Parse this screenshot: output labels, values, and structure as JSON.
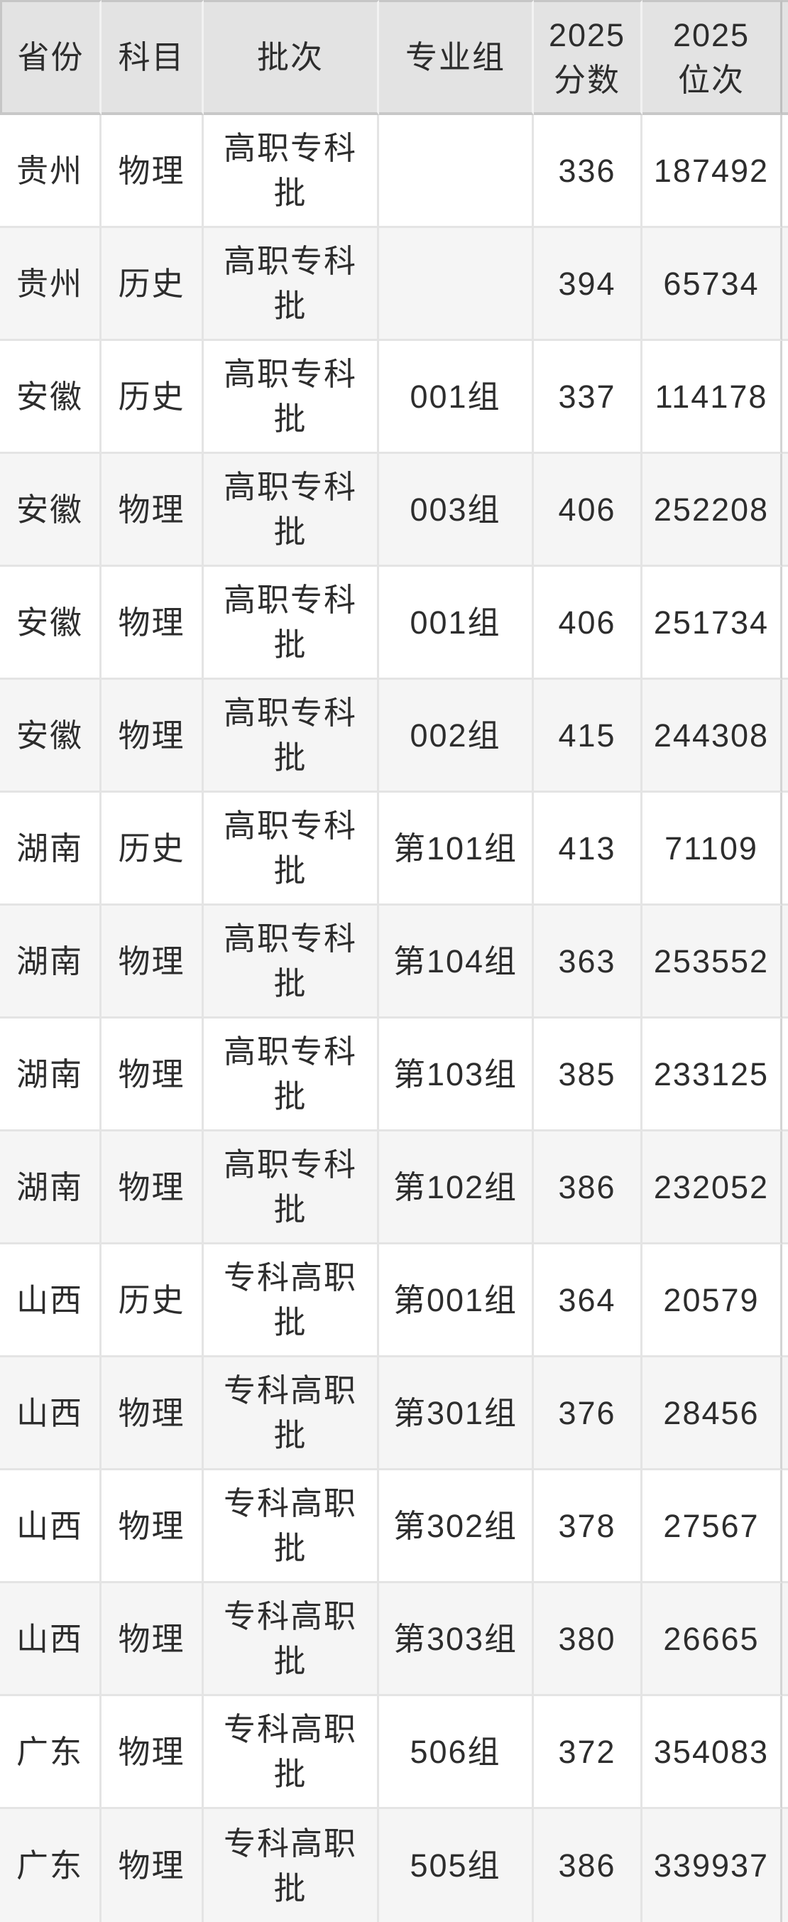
{
  "colors": {
    "header_bg": "#e3e3e3",
    "header_divider": "#c8c8c8",
    "row_bg_white": "#ffffff",
    "row_bg_gray": "#f5f5f5",
    "grid_line": "#e4e4e4",
    "right_cut_line": "#d4d4d4",
    "text": "#2d2d2d"
  },
  "chart_data": {
    "type": "table",
    "columns": [
      [
        "省份"
      ],
      [
        "科目"
      ],
      [
        "批次"
      ],
      [
        "专业组"
      ],
      [
        "2025",
        "分数"
      ],
      [
        "2025",
        "位次"
      ]
    ],
    "rows": [
      {
        "province": "贵州",
        "subject": "物理",
        "batch": [
          "高职专科",
          "批"
        ],
        "group": "",
        "score": "336",
        "rank": "187492"
      },
      {
        "province": "贵州",
        "subject": "历史",
        "batch": [
          "高职专科",
          "批"
        ],
        "group": "",
        "score": "394",
        "rank": "65734"
      },
      {
        "province": "安徽",
        "subject": "历史",
        "batch": [
          "高职专科",
          "批"
        ],
        "group": "001组",
        "score": "337",
        "rank": "114178"
      },
      {
        "province": "安徽",
        "subject": "物理",
        "batch": [
          "高职专科",
          "批"
        ],
        "group": "003组",
        "score": "406",
        "rank": "252208"
      },
      {
        "province": "安徽",
        "subject": "物理",
        "batch": [
          "高职专科",
          "批"
        ],
        "group": "001组",
        "score": "406",
        "rank": "251734"
      },
      {
        "province": "安徽",
        "subject": "物理",
        "batch": [
          "高职专科",
          "批"
        ],
        "group": "002组",
        "score": "415",
        "rank": "244308"
      },
      {
        "province": "湖南",
        "subject": "历史",
        "batch": [
          "高职专科",
          "批"
        ],
        "group": "第101组",
        "score": "413",
        "rank": "71109"
      },
      {
        "province": "湖南",
        "subject": "物理",
        "batch": [
          "高职专科",
          "批"
        ],
        "group": "第104组",
        "score": "363",
        "rank": "253552"
      },
      {
        "province": "湖南",
        "subject": "物理",
        "batch": [
          "高职专科",
          "批"
        ],
        "group": "第103组",
        "score": "385",
        "rank": "233125"
      },
      {
        "province": "湖南",
        "subject": "物理",
        "batch": [
          "高职专科",
          "批"
        ],
        "group": "第102组",
        "score": "386",
        "rank": "232052"
      },
      {
        "province": "山西",
        "subject": "历史",
        "batch": [
          "专科高职",
          "批"
        ],
        "group": "第001组",
        "score": "364",
        "rank": "20579"
      },
      {
        "province": "山西",
        "subject": "物理",
        "batch": [
          "专科高职",
          "批"
        ],
        "group": "第301组",
        "score": "376",
        "rank": "28456"
      },
      {
        "province": "山西",
        "subject": "物理",
        "batch": [
          "专科高职",
          "批"
        ],
        "group": "第302组",
        "score": "378",
        "rank": "27567"
      },
      {
        "province": "山西",
        "subject": "物理",
        "batch": [
          "专科高职",
          "批"
        ],
        "group": "第303组",
        "score": "380",
        "rank": "26665"
      },
      {
        "province": "广东",
        "subject": "物理",
        "batch": [
          "专科高职",
          "批"
        ],
        "group": "506组",
        "score": "372",
        "rank": "354083"
      },
      {
        "province": "广东",
        "subject": "物理",
        "batch": [
          "专科高职",
          "批"
        ],
        "group": "505组",
        "score": "386",
        "rank": "339937"
      }
    ]
  }
}
